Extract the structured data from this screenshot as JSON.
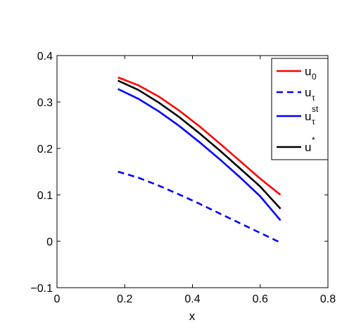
{
  "chart_data": {
    "type": "line",
    "xlabel": "x",
    "ylabel": "",
    "xlim": [
      0,
      0.8
    ],
    "ylim": [
      -0.1,
      0.4
    ],
    "xticks": [
      0,
      0.2,
      0.4,
      0.6,
      0.8
    ],
    "xtick_labels": [
      "0",
      "0.2",
      "0.4",
      "0.6",
      "0.8"
    ],
    "yticks": [
      -0.1,
      0,
      0.1,
      0.2,
      0.3,
      0.4
    ],
    "ytick_labels": [
      "−0.1",
      "0",
      "0.1",
      "0.2",
      "0.3",
      "0.4"
    ],
    "grid": false,
    "legend_position": "top-right",
    "series": [
      {
        "name": "u_0",
        "label_main": "u",
        "label_sub": "0",
        "label_sup": "",
        "color": "#ff0000",
        "dash": "solid",
        "x": [
          0.18,
          0.24,
          0.3,
          0.36,
          0.42,
          0.48,
          0.54,
          0.6,
          0.66
        ],
        "y": [
          0.353,
          0.336,
          0.312,
          0.282,
          0.248,
          0.211,
          0.173,
          0.135,
          0.1
        ]
      },
      {
        "name": "u_τ",
        "label_main": "u",
        "label_sub": "τ",
        "label_sup": "",
        "color": "#0000ff",
        "dash": "dashed",
        "x": [
          0.18,
          0.24,
          0.3,
          0.36,
          0.42,
          0.48,
          0.54,
          0.6,
          0.66
        ],
        "y": [
          0.15,
          0.137,
          0.12,
          0.101,
          0.081,
          0.06,
          0.039,
          0.018,
          -0.003
        ]
      },
      {
        "name": "u_τ^st",
        "label_main": "u",
        "label_sub": "τ",
        "label_sup": "st",
        "color": "#0000ff",
        "dash": "solid",
        "x": [
          0.18,
          0.24,
          0.3,
          0.36,
          0.42,
          0.48,
          0.54,
          0.6,
          0.66
        ],
        "y": [
          0.328,
          0.307,
          0.28,
          0.249,
          0.214,
          0.177,
          0.138,
          0.097,
          0.045
        ]
      },
      {
        "name": "u^*",
        "label_main": "u",
        "label_sub": "",
        "label_sup": "*",
        "color": "#000000",
        "dash": "solid",
        "x": [
          0.18,
          0.24,
          0.3,
          0.36,
          0.42,
          0.48,
          0.54,
          0.6,
          0.66
        ],
        "y": [
          0.346,
          0.326,
          0.299,
          0.268,
          0.233,
          0.196,
          0.157,
          0.118,
          0.07
        ]
      }
    ]
  }
}
